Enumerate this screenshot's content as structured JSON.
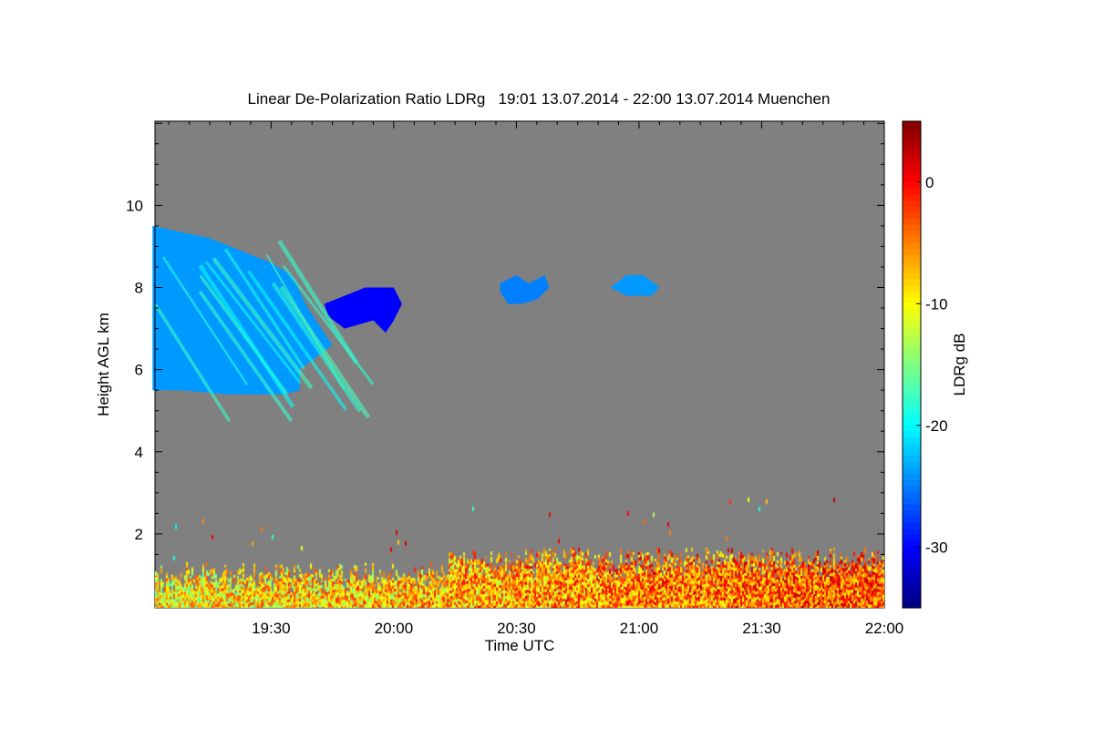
{
  "chart_data": {
    "type": "heatmap",
    "title": "Linear De-Polarization Ratio LDRg   19:01 13.07.2014 - 22:00 13.07.2014 Muenchen",
    "xlabel": "Time UTC",
    "ylabel": "Height AGL km",
    "colorbar_label": "LDRg dB",
    "xlim": [
      "19:01",
      "22:00"
    ],
    "ylim": [
      0.2,
      12.05
    ],
    "clim": [
      -35,
      5
    ],
    "colormap": "jet",
    "background_color": "#808080",
    "x_ticks": [
      "19:30",
      "20:00",
      "20:30",
      "21:00",
      "21:30",
      "22:00"
    ],
    "y_ticks": [
      2,
      4,
      6,
      8,
      10
    ],
    "colorbar_ticks": [
      0,
      -10,
      -20,
      -30
    ],
    "features": [
      {
        "name": "cirrus-cloud",
        "ldr_db": -24,
        "polygon": [
          [
            "19:01",
            9.5
          ],
          [
            "19:15",
            9.2
          ],
          [
            "19:30",
            8.6
          ],
          [
            "19:35",
            8.3
          ],
          [
            "19:39",
            7.5
          ],
          [
            "19:45",
            6.6
          ],
          [
            "19:37",
            6.0
          ],
          [
            "19:37",
            5.5
          ],
          [
            "19:33",
            5.4
          ],
          [
            "19:19",
            5.4
          ],
          [
            "19:08",
            5.5
          ],
          [
            "19:01",
            5.5
          ]
        ]
      },
      {
        "name": "cloud-1945",
        "ldr_db": -30,
        "polygon": [
          [
            "19:43",
            7.6
          ],
          [
            "19:48",
            7.8
          ],
          [
            "19:53",
            8.0
          ],
          [
            "20:00",
            8.0
          ],
          [
            "20:02",
            7.6
          ],
          [
            "20:00",
            7.2
          ],
          [
            "19:58",
            6.9
          ],
          [
            "19:55",
            7.2
          ],
          [
            "19:48",
            7.0
          ],
          [
            "19:44",
            7.3
          ]
        ]
      },
      {
        "name": "cloud-2030",
        "ldr_db": -25,
        "polygon": [
          [
            "20:26",
            8.1
          ],
          [
            "20:30",
            8.3
          ],
          [
            "20:33",
            8.1
          ],
          [
            "20:37",
            8.3
          ],
          [
            "20:38",
            8.0
          ],
          [
            "20:35",
            7.7
          ],
          [
            "20:31",
            7.6
          ],
          [
            "20:28",
            7.6
          ],
          [
            "20:26",
            7.9
          ]
        ]
      },
      {
        "name": "cloud-2100",
        "ldr_db": -24,
        "polygon": [
          [
            "20:53",
            8.0
          ],
          [
            "20:57",
            8.3
          ],
          [
            "21:01",
            8.3
          ],
          [
            "21:05",
            8.0
          ],
          [
            "21:03",
            7.8
          ],
          [
            "20:57",
            7.8
          ]
        ]
      },
      {
        "name": "boundary-layer",
        "ldr_db_range": [
          -18,
          2
        ],
        "time_range": [
          "19:01",
          "22:00"
        ],
        "height_range": [
          0.2,
          1.5
        ]
      }
    ]
  }
}
